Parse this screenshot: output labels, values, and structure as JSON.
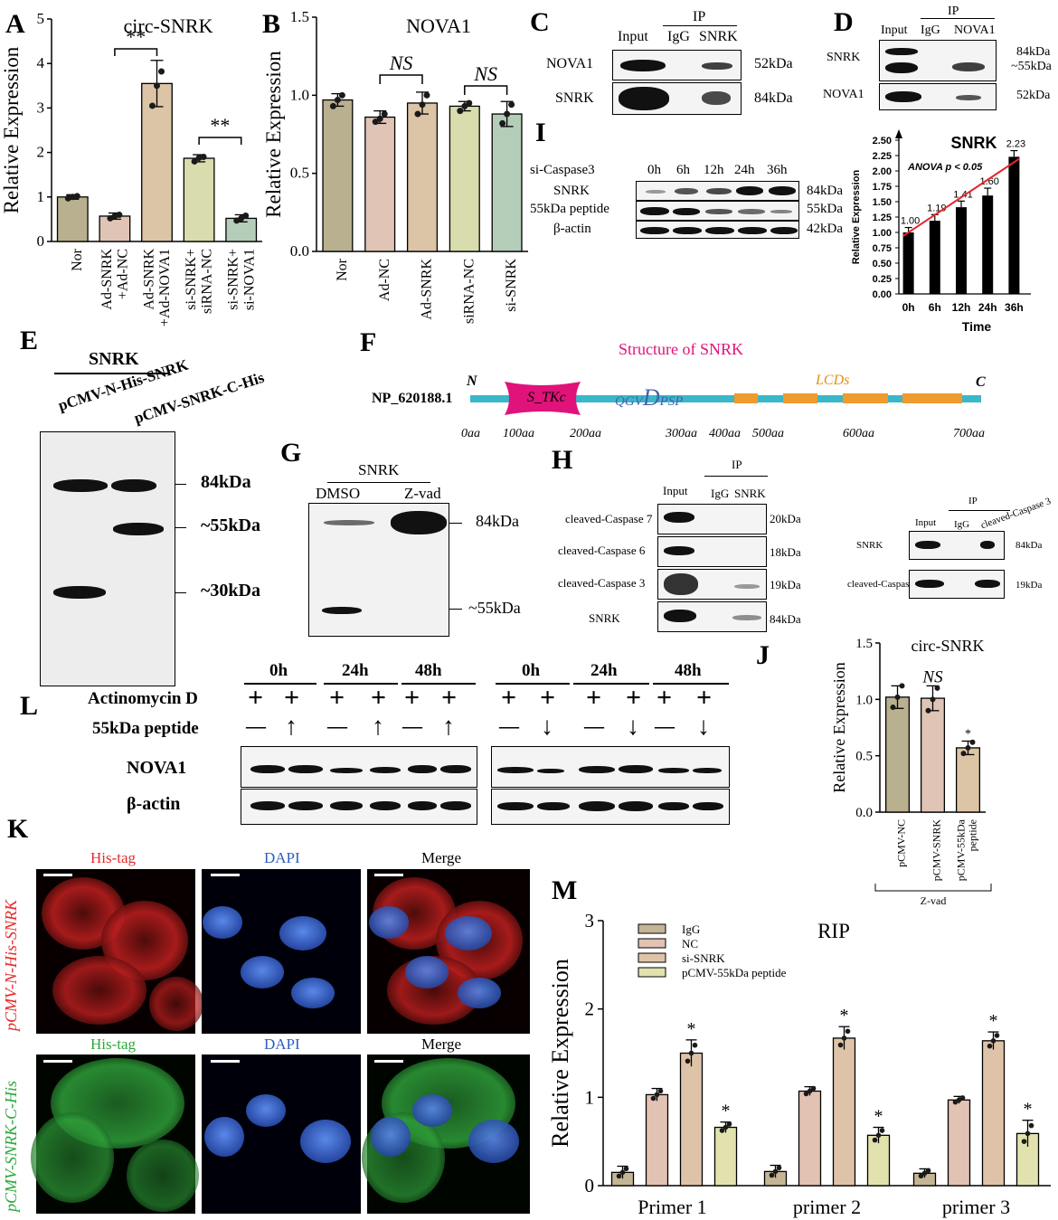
{
  "labels": {
    "A": "A",
    "B": "B",
    "C": "C",
    "D": "D",
    "E": "E",
    "F": "F",
    "G": "G",
    "H": "H",
    "I": "I",
    "J": "J",
    "K": "K",
    "L": "L",
    "M": "M"
  },
  "colors": {
    "nor": "#b9b090",
    "adnc": "#e0c4b6",
    "adsnrk": "#dcc4a6",
    "sinc": "#d9dcac",
    "sisnrk": "#b4cdb8",
    "red_line": "#e8242a",
    "teal": "#3ab7c9",
    "orange": "#ee9a2c",
    "pink": "#e0137a",
    "cyan_dark": "#4561ac",
    "m_igg": "#c4b595",
    "m_nc": "#e2c2b2",
    "m_si": "#dfc3a8",
    "m_pcmv": "#e1e2ae",
    "his_red": "#e52a2a",
    "his_green": "#2aa83a",
    "dapi_blue": "#2d5ebf"
  },
  "panel_A": {
    "chart_data": {
      "type": "bar",
      "title": "circ-SNRK",
      "ylabel": "Relative Expression",
      "ylim": [
        0,
        5
      ],
      "yticks": [
        "0",
        "1",
        "2",
        "3",
        "4",
        "5"
      ],
      "categories": [
        "Nor",
        "Ad-SNRK\n+Ad-NC",
        "Ad-SNRK\n+Ad-NOVA1",
        "si-SNRK+\nsiRNA-NC",
        "si-SNRK+\nsi-NOVA1"
      ],
      "values": [
        1.0,
        0.57,
        3.55,
        1.87,
        0.52
      ],
      "errors": [
        0.05,
        0.07,
        0.52,
        0.08,
        0.08
      ],
      "points": [
        [
          0.97,
          1.0,
          1.02
        ],
        [
          0.52,
          0.57,
          0.6
        ],
        [
          3.05,
          3.5,
          3.82
        ],
        [
          1.8,
          1.88,
          1.9
        ],
        [
          0.47,
          0.52,
          0.58
        ]
      ],
      "sig": [
        {
          "from": 1,
          "to": 2,
          "text": "**"
        },
        {
          "from": 3,
          "to": 4,
          "text": "**"
        }
      ]
    }
  },
  "panel_B": {
    "chart_data": {
      "type": "bar",
      "title": "NOVA1",
      "ylabel": "Relative Expression",
      "ylim": [
        0,
        1.5
      ],
      "yticks": [
        "0.0",
        "0.5",
        "1.0",
        "1.5"
      ],
      "categories": [
        "Nor",
        "Ad-NC",
        "Ad-SNRK",
        "siRNA-NC",
        "si-SNRK"
      ],
      "values": [
        0.97,
        0.86,
        0.95,
        0.93,
        0.88
      ],
      "errors": [
        0.04,
        0.04,
        0.07,
        0.03,
        0.08
      ],
      "points": [
        [
          0.93,
          0.97,
          1.0
        ],
        [
          0.83,
          0.85,
          0.88
        ],
        [
          0.88,
          0.94,
          1.0
        ],
        [
          0.9,
          0.93,
          0.95
        ],
        [
          0.82,
          0.88,
          0.94
        ]
      ],
      "sig": [
        {
          "from": 1,
          "to": 2,
          "text": "NS"
        },
        {
          "from": 3,
          "to": 4,
          "text": "NS"
        }
      ]
    }
  },
  "panel_C": {
    "ip": "IP",
    "cols": [
      "Input",
      "IgG",
      "SNRK"
    ],
    "rows": [
      "NOVA1",
      "SNRK"
    ],
    "kda": [
      "52kDa",
      "84kDa"
    ]
  },
  "panel_D": {
    "ip": "IP",
    "cols": [
      "Input",
      "IgG",
      "NOVA1"
    ],
    "rows": [
      "SNRK",
      "NOVA1"
    ],
    "kda": [
      "84kDa",
      "~55kDa",
      "52kDa"
    ]
  },
  "panel_I_blot": {
    "condition": "si-Caspase3",
    "cols": [
      "0h",
      "6h",
      "12h",
      "24h",
      "36h"
    ],
    "rows": [
      "SNRK",
      "55kDa peptide",
      "β-actin"
    ],
    "kda": [
      "84kDa",
      "55kDa",
      "42kDa"
    ]
  },
  "panel_I_chart": {
    "chart_data": {
      "type": "bar",
      "title": "SNRK",
      "ylabel": "Relative Expression",
      "xlabel": "Time",
      "ylim": [
        0,
        2.5
      ],
      "yticks": [
        "0.00",
        "0.25",
        "0.50",
        "0.75",
        "1.00",
        "1.25",
        "1.50",
        "1.75",
        "2.00",
        "2.25",
        "2.50"
      ],
      "categories": [
        "0h",
        "6h",
        "12h",
        "24h",
        "36h"
      ],
      "values": [
        1.0,
        1.19,
        1.41,
        1.6,
        2.23
      ],
      "value_labels": [
        "1.00",
        "1.19",
        "1.41",
        "1.60",
        "2.23"
      ],
      "errors": [
        0.08,
        0.1,
        0.1,
        0.12,
        0.1
      ],
      "annotation": "ANOVA p < 0.05"
    }
  },
  "panel_E": {
    "group": "SNRK",
    "cols": [
      "pCMV-N-His-SNRK",
      "pCMV-SNRK-C-His"
    ],
    "kda": [
      "84kDa",
      "~55kDa",
      "~30kDa"
    ]
  },
  "panel_F": {
    "title": "Structure of SNRK",
    "accession": "NP_620188.1",
    "n": "N",
    "c": "C",
    "domain": "S_TKc",
    "motif_pre": "QGV",
    "motif_d": "D",
    "motif_post": "PSP",
    "lcds": "LCDs",
    "ticks": [
      "0aa",
      "100aa",
      "200aa",
      "300aa",
      "400aa",
      "500aa",
      "600aa",
      "700aa"
    ]
  },
  "panel_G": {
    "group": "SNRK",
    "cols": [
      "DMSO",
      "Z-vad"
    ],
    "kda": [
      "84kDa",
      "~55kDa"
    ]
  },
  "panel_H_left": {
    "cols": [
      "Input",
      "IgG",
      "SNRK"
    ],
    "ip": "IP",
    "rows": [
      "cleaved-Caspase 7",
      "cleaved-Caspase 6",
      "cleaved-Caspase 3",
      "SNRK"
    ],
    "kda": [
      "20kDa",
      "18kDa",
      "19kDa",
      "84kDa"
    ]
  },
  "panel_H_right": {
    "cols": [
      "Input",
      "IgG",
      "cleaved-Caspase 3"
    ],
    "ip": "IP",
    "rows": [
      "SNRK",
      "cleaved-Caspase 3"
    ],
    "kda": [
      "84kDa",
      "19kDa"
    ]
  },
  "panel_L": {
    "times": [
      "0h",
      "24h",
      "48h",
      "0h",
      "24h",
      "48h"
    ],
    "row1": "Actinomycin D",
    "row2": "55kDa peptide",
    "rows": [
      "NOVA1",
      "β-actin"
    ],
    "plus": "+",
    "minus": "—",
    "up": "↑",
    "down": "↓"
  },
  "panel_J": {
    "chart_data": {
      "type": "bar",
      "title": "circ-SNRK",
      "ylabel": "Relative Expression",
      "ylim": [
        0,
        1.5
      ],
      "yticks": [
        "0.0",
        "0.5",
        "1.0",
        "1.5"
      ],
      "categories": [
        "pCMV-NC",
        "pCMV-SNRK",
        "pCMV-55kDa\npeptide"
      ],
      "values": [
        1.02,
        1.01,
        0.57
      ],
      "errors": [
        0.1,
        0.11,
        0.06
      ],
      "points": [
        [
          0.93,
          1.02,
          1.12
        ],
        [
          0.9,
          1.0,
          1.1
        ],
        [
          0.52,
          0.57,
          0.62
        ]
      ],
      "sig": [
        "",
        "NS",
        "*"
      ],
      "group_label": "Z-vad"
    }
  },
  "panel_K": {
    "cols": [
      "His-tag",
      "DAPI",
      "Merge"
    ],
    "rows": [
      "pCMV-N-His-SNRK",
      "pCMV-SNRK-C-His"
    ],
    "cols2": [
      "His-tag",
      "DAPI",
      "Merge"
    ]
  },
  "panel_M": {
    "chart_data": {
      "type": "bar",
      "title": "RIP",
      "ylabel": "Relative Expression",
      "ylim": [
        0,
        3
      ],
      "yticks": [
        "0",
        "1",
        "2",
        "3"
      ],
      "categories": [
        "Primer 1",
        "primer 2",
        "primer 3"
      ],
      "series": [
        {
          "name": "IgG",
          "values": [
            0.15,
            0.16,
            0.14
          ],
          "errors": [
            0.07,
            0.07,
            0.05
          ]
        },
        {
          "name": "NC",
          "values": [
            1.03,
            1.07,
            0.97
          ],
          "errors": [
            0.07,
            0.05,
            0.04
          ]
        },
        {
          "name": "si-SNRK",
          "values": [
            1.5,
            1.67,
            1.64
          ],
          "errors": [
            0.15,
            0.13,
            0.1
          ]
        },
        {
          "name": "pCMV-55kDa peptide",
          "values": [
            0.66,
            0.57,
            0.59
          ],
          "errors": [
            0.06,
            0.09,
            0.15
          ]
        }
      ],
      "sig": "*"
    }
  }
}
